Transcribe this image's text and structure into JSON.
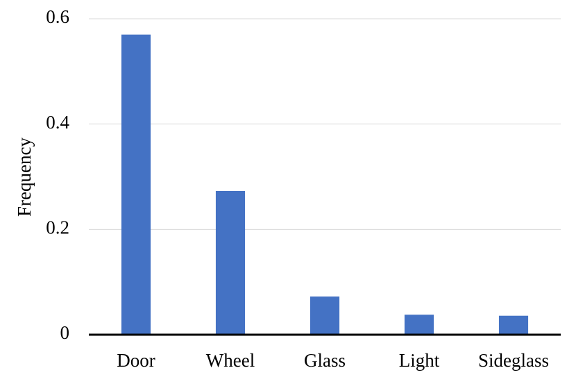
{
  "chart_data": {
    "type": "bar",
    "y_label": "Frequency",
    "categories": [
      "Door",
      "Wheel",
      "Glass",
      "Light",
      "Sideglass"
    ],
    "values": [
      0.57,
      0.273,
      0.0725,
      0.038,
      0.036
    ],
    "color": "#4472c4",
    "ylim": [
      0,
      0.6
    ],
    "yticks": [
      0,
      0.2,
      0.4,
      0.6
    ],
    "grid": true
  }
}
